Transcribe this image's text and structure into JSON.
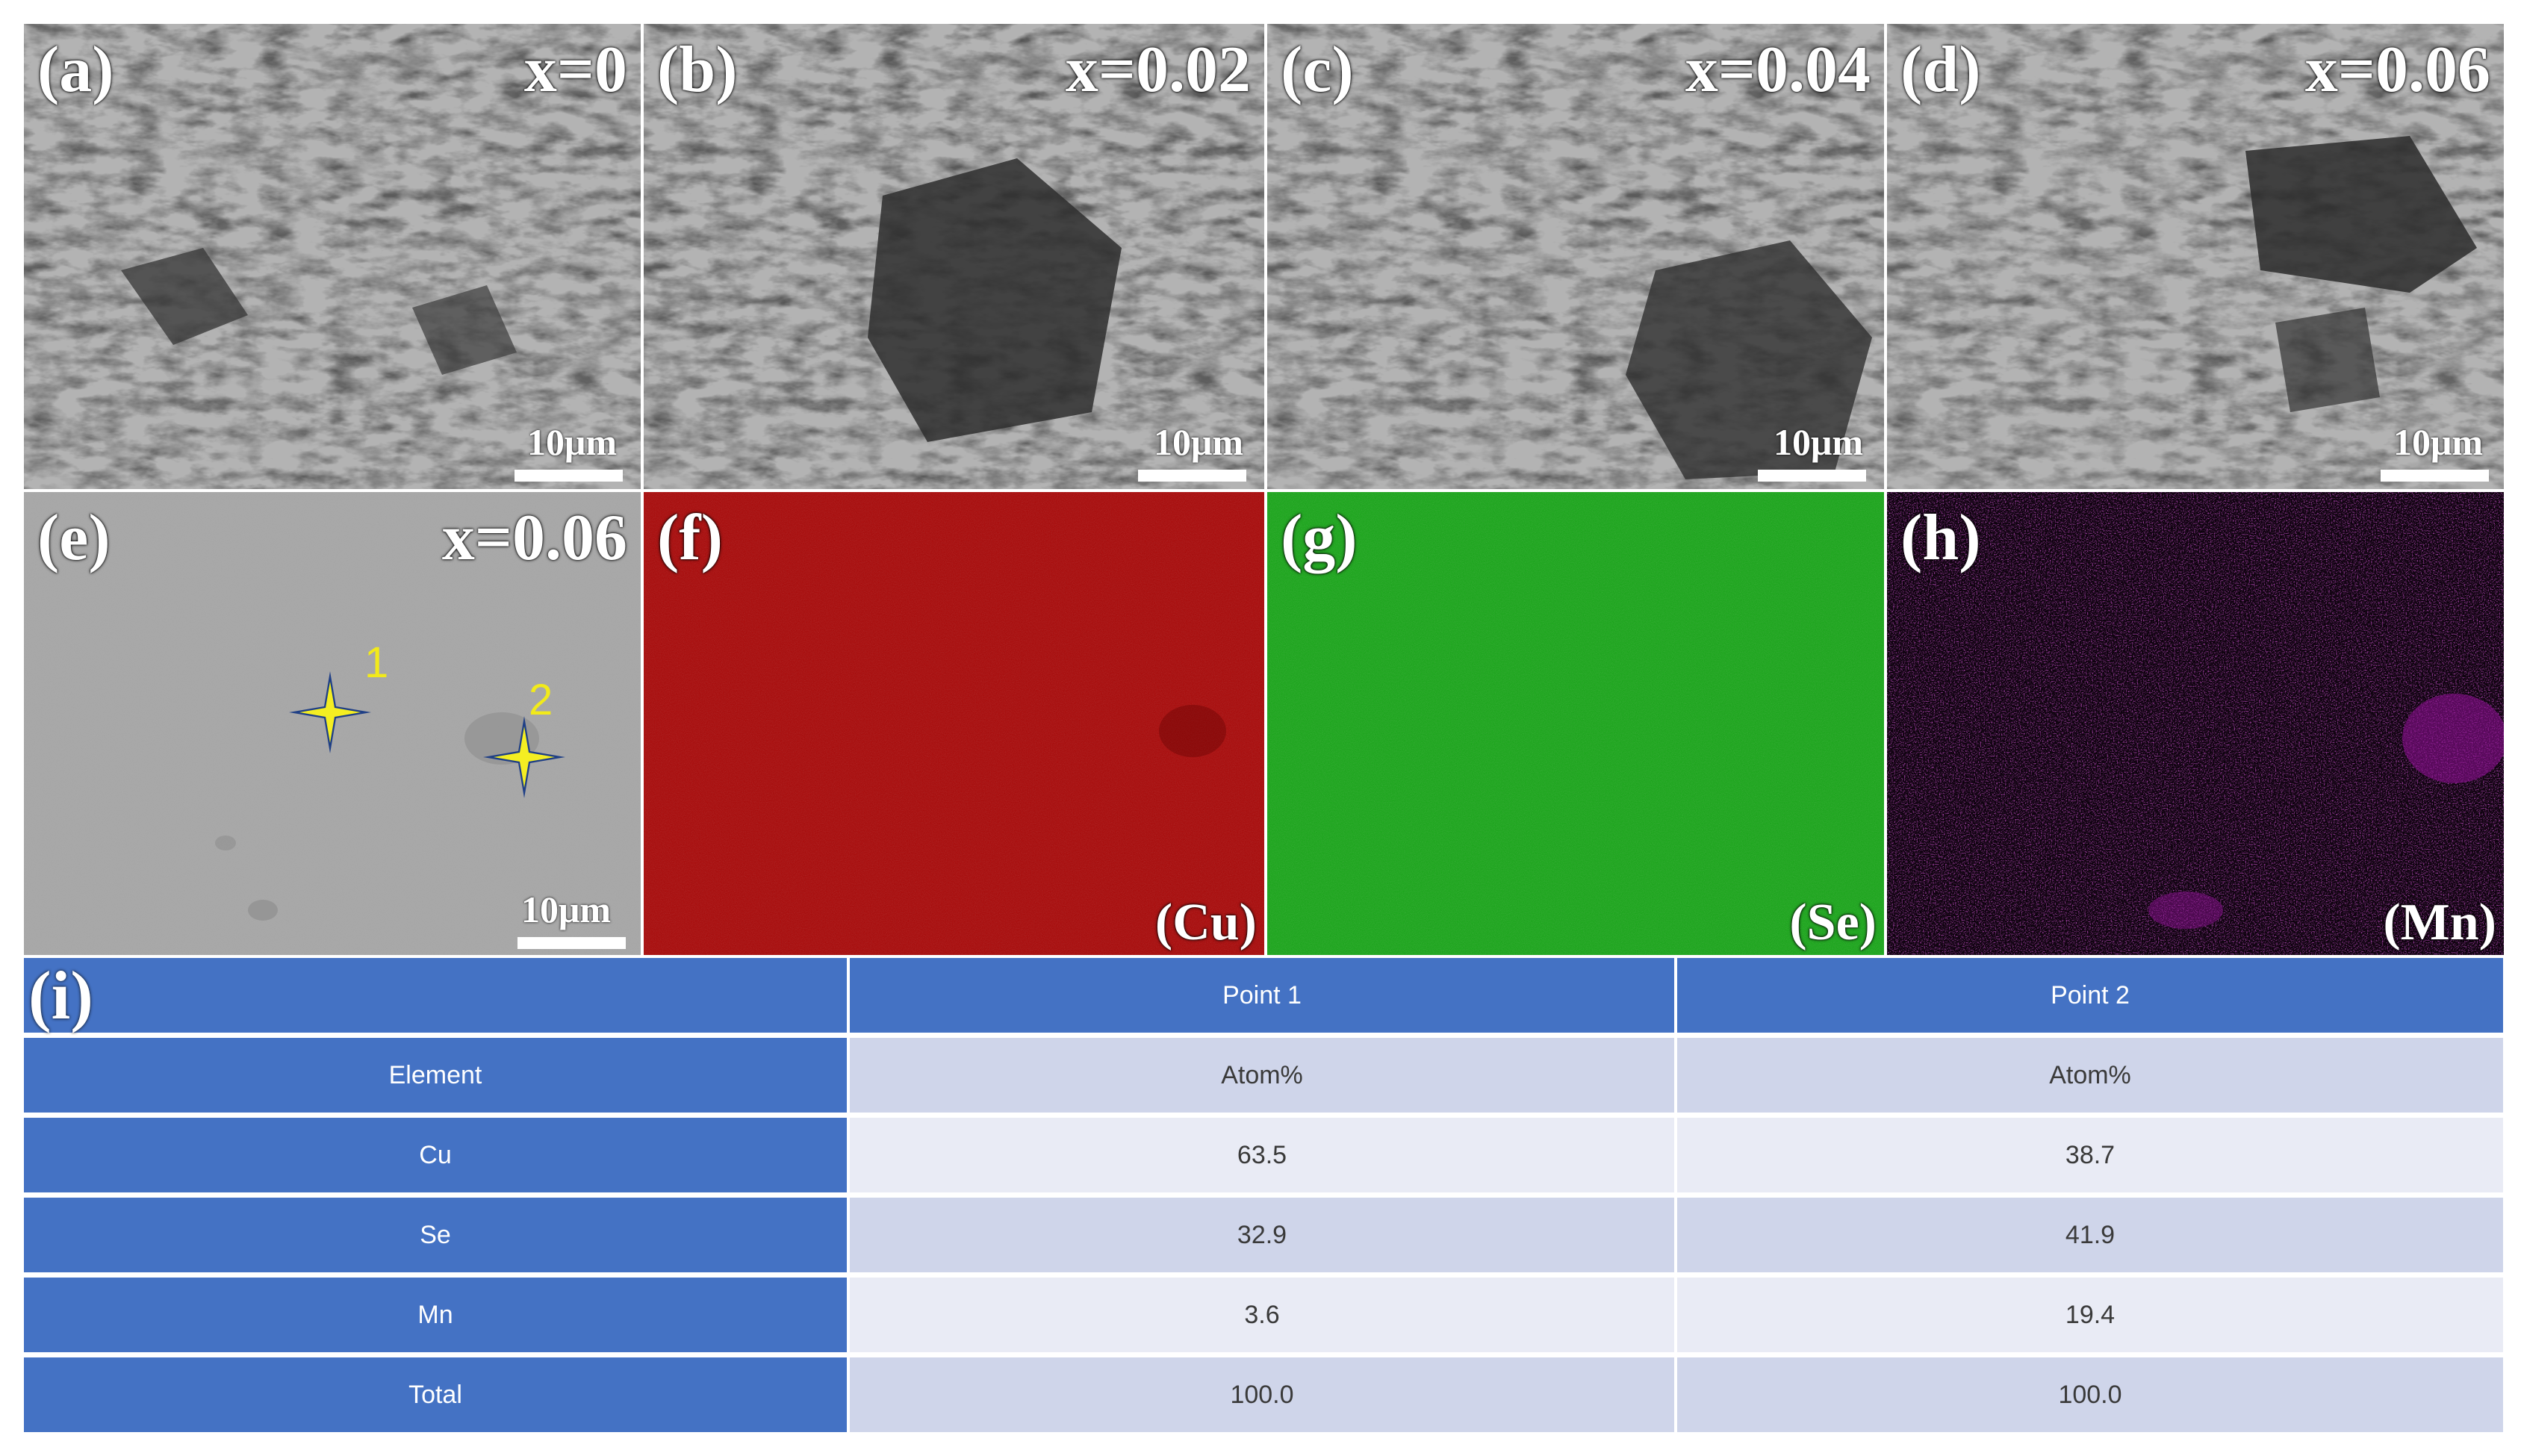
{
  "top_row": [
    {
      "label": "(a)",
      "x": "x=0",
      "scale": "10μm"
    },
    {
      "label": "(b)",
      "x": "x=0.02",
      "scale": "10μm"
    },
    {
      "label": "(c)",
      "x": "x=0.04",
      "scale": "10μm"
    },
    {
      "label": "(d)",
      "x": "x=0.06",
      "scale": "10μm"
    }
  ],
  "bottom_row": {
    "e": {
      "label": "(e)",
      "x": "x=0.06",
      "scale": "10μm",
      "point1": "1",
      "point2": "2"
    },
    "f": {
      "label": "(f)",
      "element": "(Cu)",
      "color": "#a80404"
    },
    "g": {
      "label": "(g)",
      "element": "(Se)",
      "color": "#13a513"
    },
    "h": {
      "label": "(h)",
      "element": "(Mn)",
      "color": "#8a0f8f"
    }
  },
  "table": {
    "label": "(i)",
    "header": [
      "",
      "Point 1",
      "Point 2"
    ],
    "rows": [
      [
        "Element",
        "Atom%",
        "Atom%"
      ],
      [
        "Cu",
        "63.5",
        "38.7"
      ],
      [
        "Se",
        "32.9",
        "41.9"
      ],
      [
        "Mn",
        "3.6",
        "19.4"
      ],
      [
        "Total",
        "100.0",
        "100.0"
      ]
    ],
    "colors": {
      "header": "#4472c4",
      "odd": "#cfd5ea",
      "even": "#e9ebf5"
    }
  }
}
